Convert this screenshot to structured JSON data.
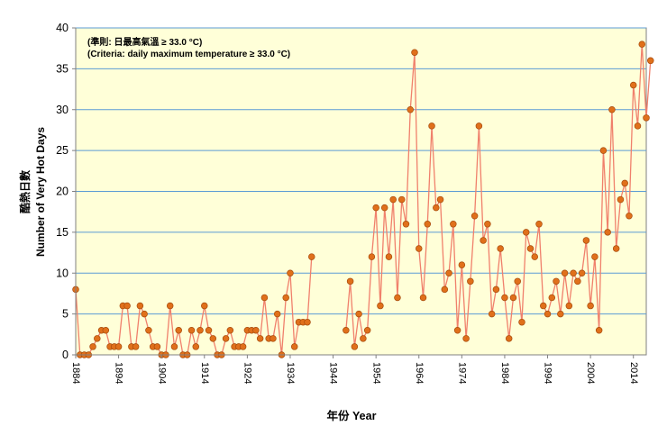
{
  "chart_data": {
    "type": "line",
    "title": "",
    "annotation_lines": [
      "(準則: 日最高氣溫 ≥ 33.0 °C)",
      "(Criteria: daily maximum temperature ≥ 33.0 °C)"
    ],
    "ylabel_lines": [
      "酷熱日數",
      "Number of Very Hot Days"
    ],
    "xlabel": "年份 Year",
    "ylim": [
      0,
      40
    ],
    "yticks": [
      0,
      5,
      10,
      15,
      20,
      25,
      30,
      35,
      40
    ],
    "xlim": [
      1884,
      2017
    ],
    "xticks": [
      1884,
      1894,
      1904,
      1914,
      1924,
      1934,
      1944,
      1954,
      1964,
      1974,
      1984,
      1994,
      2004,
      2014
    ],
    "grid": "horizontal",
    "legend": "none",
    "colors": {
      "line": "#f0806c",
      "marker": "#e0701b",
      "marker_edge": "#a64b0c",
      "plot_bg": "#ffffd8",
      "grid": "#5b9bd5"
    },
    "series": [
      {
        "points": [
          [
            1884,
            8
          ],
          [
            1885,
            0
          ],
          [
            1886,
            0
          ],
          [
            1887,
            0
          ],
          [
            1888,
            1
          ],
          [
            1889,
            2
          ],
          [
            1890,
            3
          ],
          [
            1891,
            3
          ],
          [
            1892,
            1
          ],
          [
            1893,
            1
          ],
          [
            1894,
            1
          ],
          [
            1895,
            6
          ],
          [
            1896,
            6
          ],
          [
            1897,
            1
          ],
          [
            1898,
            1
          ],
          [
            1899,
            6
          ],
          [
            1900,
            5
          ],
          [
            1901,
            3
          ],
          [
            1902,
            1
          ],
          [
            1903,
            1
          ],
          [
            1904,
            0
          ],
          [
            1905,
            0
          ],
          [
            1906,
            6
          ],
          [
            1907,
            1
          ],
          [
            1908,
            3
          ],
          [
            1909,
            0
          ],
          [
            1910,
            0
          ],
          [
            1911,
            3
          ],
          [
            1912,
            1
          ],
          [
            1913,
            3
          ],
          [
            1914,
            6
          ],
          [
            1915,
            3
          ],
          [
            1916,
            2
          ],
          [
            1917,
            0
          ],
          [
            1918,
            0
          ],
          [
            1919,
            2
          ],
          [
            1920,
            3
          ],
          [
            1921,
            1
          ],
          [
            1922,
            1
          ],
          [
            1923,
            1
          ],
          [
            1924,
            3
          ],
          [
            1925,
            3
          ],
          [
            1926,
            3
          ],
          [
            1927,
            2
          ],
          [
            1928,
            7
          ],
          [
            1929,
            2
          ],
          [
            1930,
            2
          ],
          [
            1931,
            5
          ],
          [
            1932,
            0
          ],
          [
            1933,
            7
          ],
          [
            1934,
            10
          ],
          [
            1935,
            1
          ],
          [
            1936,
            4
          ],
          [
            1937,
            4
          ],
          [
            1938,
            4
          ],
          [
            1939,
            12
          ]
        ]
      },
      {
        "points": [
          [
            1947,
            3
          ],
          [
            1948,
            9
          ],
          [
            1949,
            1
          ],
          [
            1950,
            5
          ],
          [
            1951,
            2
          ],
          [
            1952,
            3
          ],
          [
            1953,
            12
          ],
          [
            1954,
            18
          ],
          [
            1955,
            6
          ],
          [
            1956,
            18
          ],
          [
            1957,
            12
          ],
          [
            1958,
            19
          ],
          [
            1959,
            7
          ],
          [
            1960,
            19
          ],
          [
            1961,
            16
          ],
          [
            1962,
            30
          ],
          [
            1963,
            37
          ],
          [
            1964,
            13
          ],
          [
            1965,
            7
          ],
          [
            1966,
            16
          ],
          [
            1967,
            28
          ],
          [
            1968,
            18
          ],
          [
            1969,
            19
          ],
          [
            1970,
            8
          ],
          [
            1971,
            10
          ],
          [
            1972,
            16
          ],
          [
            1973,
            3
          ],
          [
            1974,
            11
          ],
          [
            1975,
            2
          ],
          [
            1976,
            9
          ],
          [
            1977,
            17
          ],
          [
            1978,
            28
          ],
          [
            1979,
            14
          ],
          [
            1980,
            16
          ],
          [
            1981,
            5
          ],
          [
            1982,
            8
          ],
          [
            1983,
            13
          ],
          [
            1984,
            7
          ],
          [
            1985,
            2
          ],
          [
            1986,
            7
          ],
          [
            1987,
            9
          ],
          [
            1988,
            4
          ],
          [
            1989,
            15
          ],
          [
            1990,
            13
          ],
          [
            1991,
            12
          ],
          [
            1992,
            16
          ],
          [
            1993,
            6
          ],
          [
            1994,
            5
          ],
          [
            1995,
            7
          ],
          [
            1996,
            9
          ],
          [
            1997,
            5
          ],
          [
            1998,
            10
          ],
          [
            1999,
            6
          ],
          [
            2000,
            10
          ],
          [
            2001,
            9
          ],
          [
            2002,
            10
          ],
          [
            2003,
            14
          ],
          [
            2004,
            6
          ],
          [
            2005,
            12
          ],
          [
            2006,
            3
          ],
          [
            2007,
            25
          ],
          [
            2008,
            15
          ],
          [
            2009,
            30
          ],
          [
            2010,
            13
          ],
          [
            2011,
            19
          ],
          [
            2012,
            21
          ],
          [
            2013,
            17
          ],
          [
            2014,
            33
          ],
          [
            2015,
            28
          ],
          [
            2016,
            38
          ],
          [
            2017,
            29
          ],
          [
            2018,
            36
          ]
        ]
      }
    ]
  }
}
